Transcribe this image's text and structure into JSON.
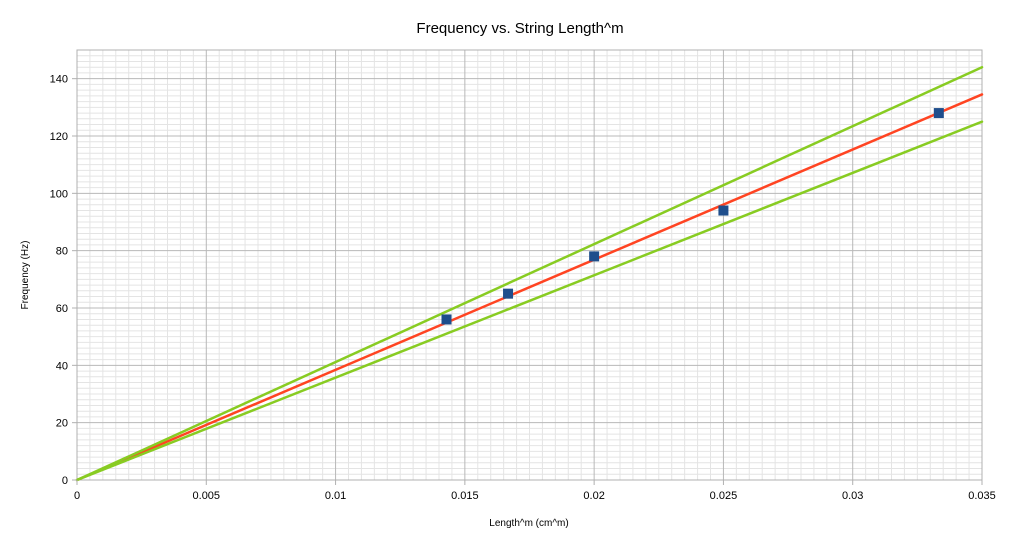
{
  "chart_data": {
    "type": "scatter",
    "title": "Frequency vs. String Length^m",
    "xlabel": "Length^m (cm^m)",
    "ylabel": "Frequency (Hz)",
    "xlim": [
      0,
      0.035
    ],
    "ylim": [
      0,
      150
    ],
    "x_ticks": [
      0,
      0.005,
      0.01,
      0.015,
      0.02,
      0.025,
      0.03,
      0.035
    ],
    "x_tick_labels": [
      "0",
      "0.005",
      "0.01",
      "0.015",
      "0.02",
      "0.025",
      "0.03",
      "0.035"
    ],
    "y_ticks": [
      0,
      20,
      40,
      60,
      80,
      100,
      120,
      140
    ],
    "y_tick_labels": [
      "0",
      "20",
      "40",
      "60",
      "80",
      "100",
      "120",
      "140"
    ],
    "grid": true,
    "points": {
      "color": "#1f4e8c",
      "x": [
        0.01429,
        0.01667,
        0.02,
        0.025,
        0.03333
      ],
      "y": [
        56,
        65,
        78,
        94,
        128
      ]
    },
    "lines": [
      {
        "color": "#ff4422",
        "x": [
          0,
          0.035
        ],
        "y": [
          0,
          134.5
        ]
      },
      {
        "color": "#88cc22",
        "x": [
          0,
          0.035
        ],
        "y": [
          0,
          144
        ]
      },
      {
        "color": "#88cc22",
        "x": [
          0,
          0.035
        ],
        "y": [
          0,
          125
        ]
      }
    ]
  }
}
